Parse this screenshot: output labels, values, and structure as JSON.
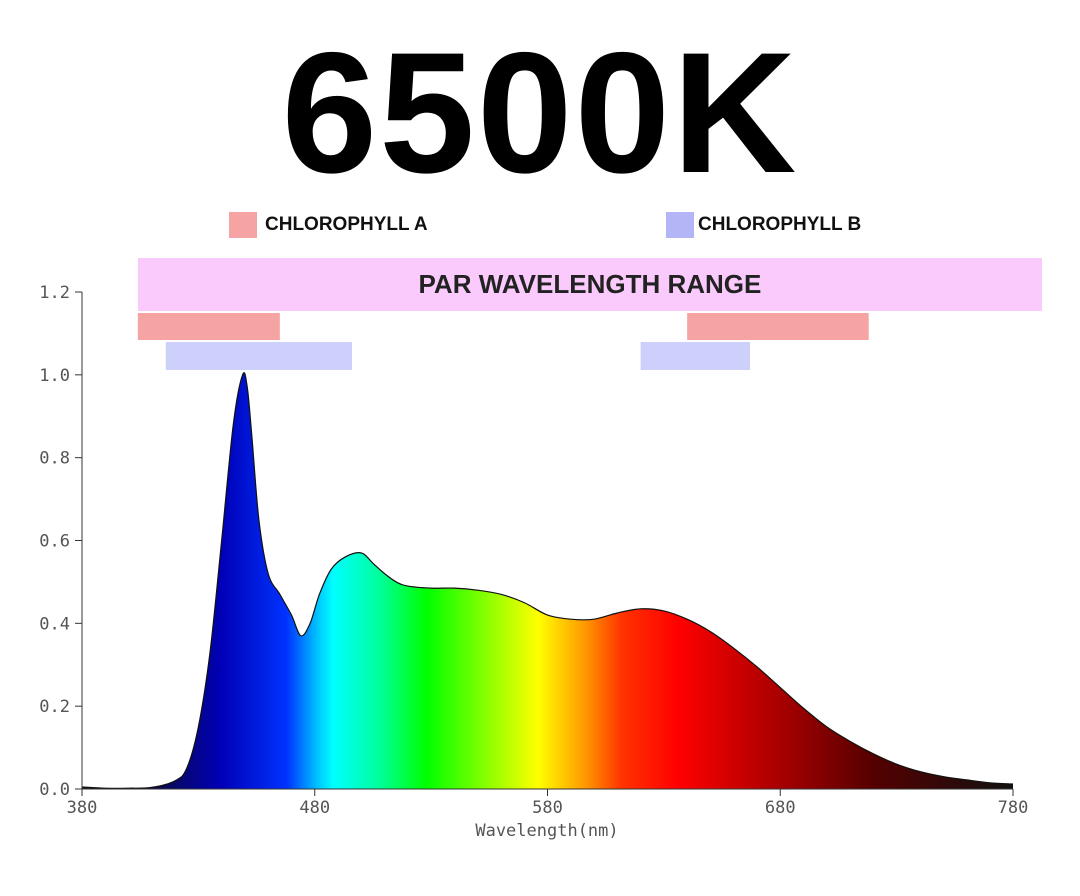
{
  "header": {
    "title": "6500K"
  },
  "legend": {
    "items": [
      {
        "label": "CHLOROPHYLL A",
        "color": "#f6a3a3"
      },
      {
        "label": "CHLOROPHYLL B",
        "color": "#b3b5f7"
      }
    ]
  },
  "chart_data": {
    "type": "area",
    "xlabel": "Wavelength(nm)",
    "ylabel": "",
    "xlim": [
      380,
      780
    ],
    "ylim": [
      0,
      1.2
    ],
    "x_ticks": [
      380,
      480,
      580,
      680,
      780
    ],
    "y_ticks": [
      "0.0",
      "0.2",
      "0.4",
      "0.6",
      "0.8",
      "1.0",
      "1.2"
    ],
    "grid": false,
    "fill": "visible-spectrum gradient",
    "series": [
      {
        "x": [
          380,
          390,
          400,
          410,
          420,
          425,
          430,
          435,
          440,
          445,
          449,
          451,
          453,
          456,
          460,
          465,
          470,
          474,
          478,
          482,
          487,
          493,
          500,
          505,
          510,
          515,
          520,
          530,
          540,
          550,
          560,
          570,
          580,
          590,
          600,
          610,
          620,
          630,
          640,
          650,
          660,
          670,
          680,
          690,
          700,
          710,
          720,
          730,
          740,
          750,
          760,
          770,
          780
        ],
        "y": [
          0.005,
          0.002,
          0.002,
          0.004,
          0.02,
          0.05,
          0.15,
          0.33,
          0.6,
          0.88,
          1.0,
          0.97,
          0.85,
          0.65,
          0.52,
          0.47,
          0.42,
          0.37,
          0.4,
          0.47,
          0.53,
          0.56,
          0.57,
          0.545,
          0.52,
          0.5,
          0.49,
          0.485,
          0.485,
          0.48,
          0.47,
          0.45,
          0.42,
          0.41,
          0.41,
          0.425,
          0.435,
          0.43,
          0.41,
          0.38,
          0.34,
          0.295,
          0.245,
          0.195,
          0.15,
          0.115,
          0.085,
          0.06,
          0.042,
          0.03,
          0.022,
          0.015,
          0.012
        ]
      }
    ],
    "bands": [
      {
        "label": "PAR WAVELENGTH RANGE",
        "from": 404,
        "to": 793,
        "color": "#facafd"
      },
      {
        "label": "",
        "from": 404,
        "to": 465,
        "color": "#f6a3a3"
      },
      {
        "label": "",
        "from": 640,
        "to": 718,
        "color": "#f6a3a3"
      },
      {
        "label": "",
        "from": 416,
        "to": 496,
        "color": "#ccd0fa"
      },
      {
        "label": "",
        "from": 620,
        "to": 667,
        "color": "#ccd0fa"
      }
    ]
  }
}
